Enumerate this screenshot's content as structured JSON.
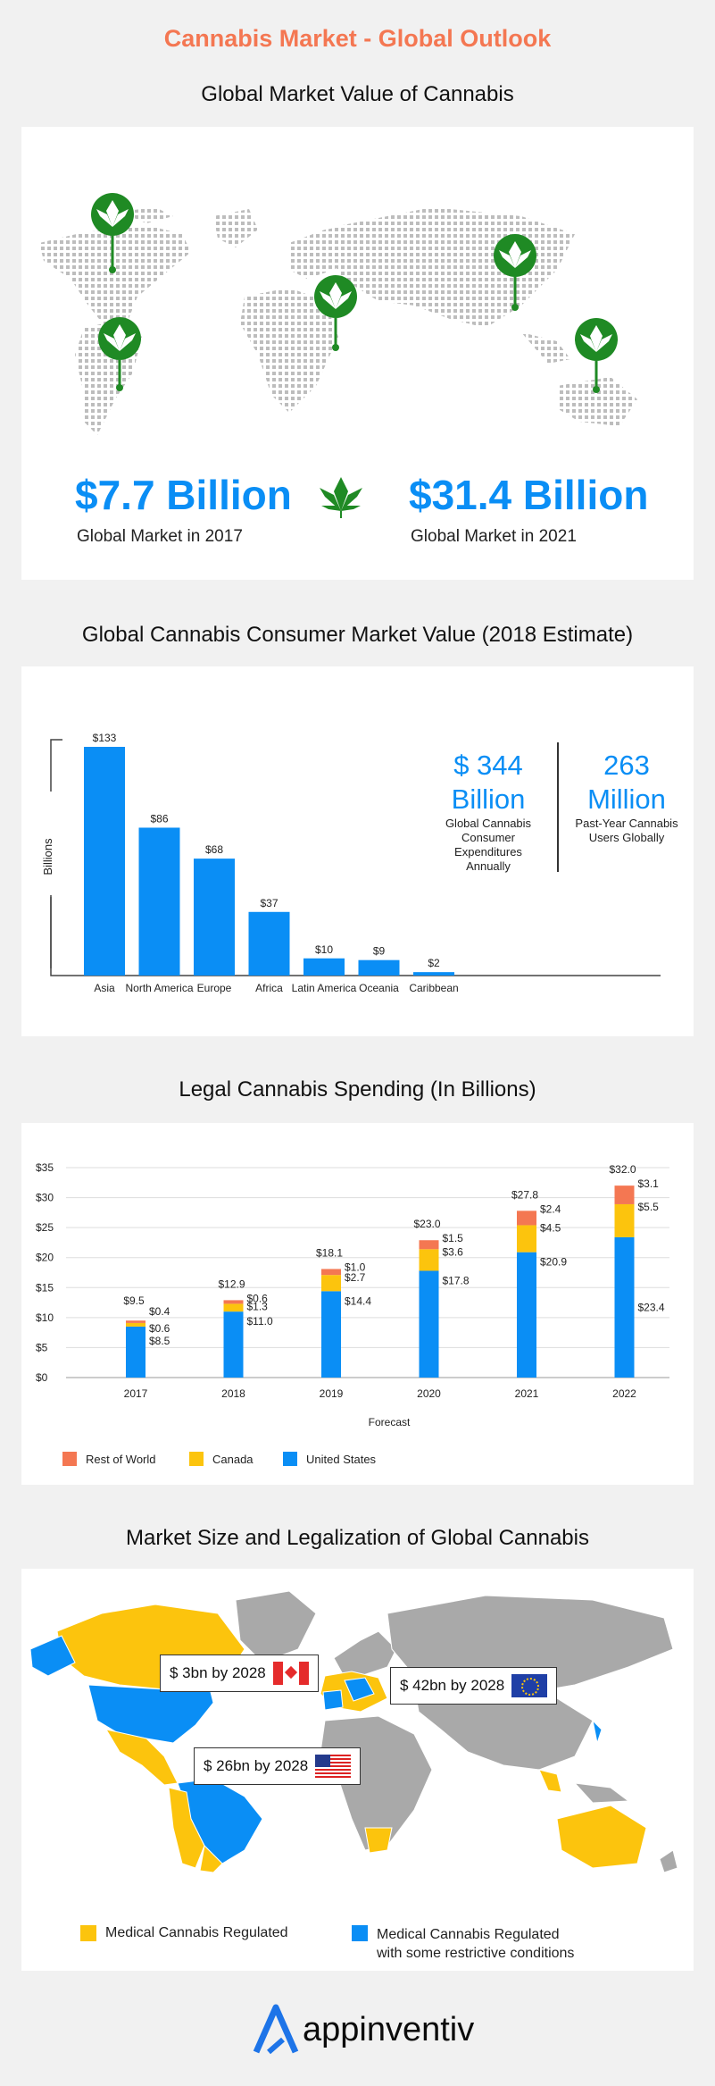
{
  "header": {
    "title": "Cannabis Market - Global Outlook"
  },
  "section1": {
    "title": "Global Market Value of Cannabis",
    "left_value": "$7.7 Billion",
    "left_label": "Global Market in 2017",
    "right_value": "$31.4 Billion",
    "right_label": "Global Market in 2021"
  },
  "section2": {
    "title": "Global Cannabis Consumer Market Value (2018 Estimate)",
    "stat1_num": "$ 344",
    "stat1_unit": "Billion",
    "stat1_caption": "Global Cannabis Consumer Expenditures Annually",
    "stat2_num": "263",
    "stat2_unit": "Million",
    "stat2_caption": "Past-Year Cannabis Users Globally"
  },
  "section3": {
    "title": "Legal Cannabis Spending (In Billions)"
  },
  "section4": {
    "title": "Market Size and Legalization of Global Cannabis",
    "callout_canada": "$ 3bn by 2028",
    "callout_europe": "$ 42bn by 2028",
    "callout_us": "$ 26bn by 2028",
    "legend_yellow": "Medical Cannabis Regulated",
    "legend_blue_line1": "Medical Cannabis Regulated",
    "legend_blue_line2": "with some restrictive conditions"
  },
  "footer": {
    "brand": "appinventiv"
  },
  "colors": {
    "accent_orange": "#f47752",
    "blue": "#0a8ef5",
    "yellow": "#fcc40d",
    "green": "#1f8a24",
    "map_gray": "#a9a9a9"
  },
  "chart_data": [
    {
      "type": "bar",
      "title": "Global Cannabis Consumer Market Value (2018 Estimate)",
      "ylabel": "Billions",
      "categories": [
        "Asia",
        "North America",
        "Europe",
        "Africa",
        "Latin America",
        "Oceania",
        "Caribbean"
      ],
      "values": [
        133,
        86,
        68,
        37,
        10,
        9,
        2
      ],
      "value_labels": [
        "$133",
        "$86",
        "$68",
        "$37",
        "$10",
        "$9",
        "$2"
      ],
      "ylim": [
        0,
        133
      ]
    },
    {
      "type": "bar",
      "stacked": true,
      "title": "Legal Cannabis Spending (In Billions)",
      "xlabel": "Forecast",
      "categories": [
        "2017",
        "2018",
        "2019",
        "2020",
        "2021",
        "2022"
      ],
      "yticks": [
        "$0",
        "$5",
        "$10",
        "$15",
        "$20",
        "$25",
        "$30",
        "$35"
      ],
      "ylim": [
        0,
        35
      ],
      "series": [
        {
          "name": "United States",
          "values": [
            8.5,
            11.0,
            14.4,
            17.8,
            20.9,
            23.4
          ],
          "labels": [
            "$8.5",
            "$11.0",
            "$14.4",
            "$17.8",
            "$20.9",
            "$23.4"
          ]
        },
        {
          "name": "Canada",
          "values": [
            0.6,
            1.3,
            2.7,
            3.6,
            4.5,
            5.5
          ],
          "labels": [
            "$0.6",
            "$1.3",
            "$2.7",
            "$3.6",
            "$4.5",
            "$5.5"
          ]
        },
        {
          "name": "Rest of World",
          "values": [
            0.4,
            0.6,
            1.0,
            1.5,
            2.4,
            3.1
          ],
          "labels": [
            "$0.4",
            "$0.6",
            "$1.0",
            "$1.5",
            "$2.4",
            "$3.1"
          ]
        }
      ],
      "totals": [
        "$9.5",
        "$12.9",
        "$18.1",
        "$23.0",
        "$27.8",
        "$32.0"
      ],
      "legend_order": [
        "Rest of World",
        "Canada",
        "United States"
      ]
    }
  ]
}
